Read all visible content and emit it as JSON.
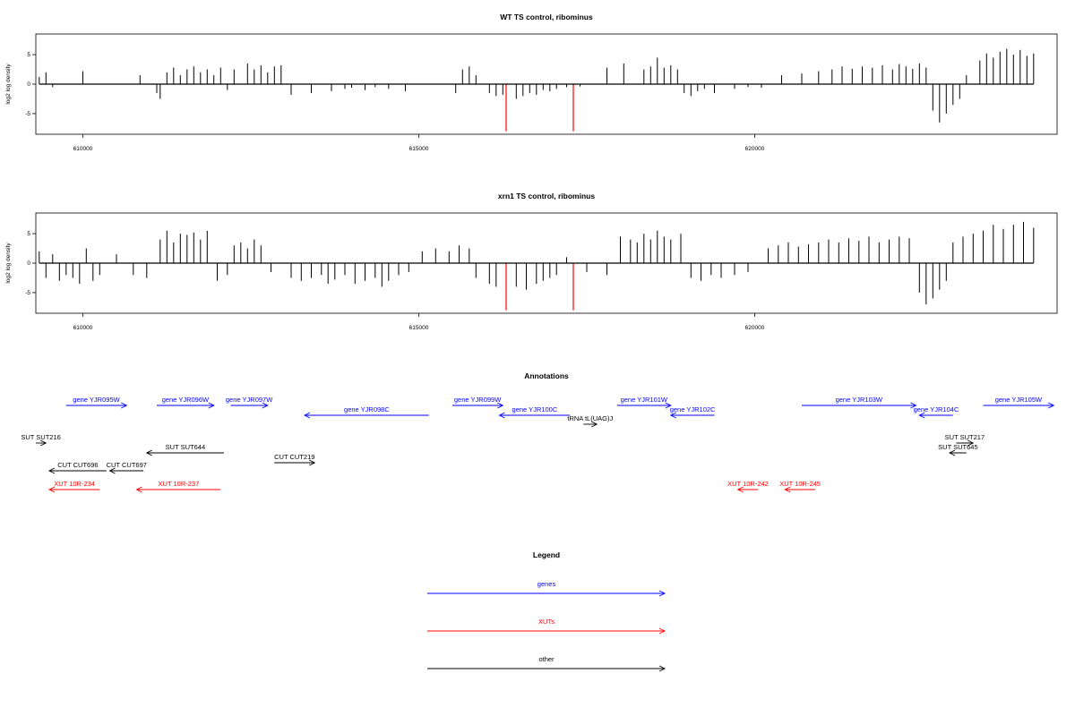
{
  "chart_data": [
    {
      "type": "bar",
      "title": "WT TS control, ribominus",
      "xlabel": "",
      "ylabel": "log2 log density",
      "xlim": [
        609300,
        624500
      ],
      "ylim": [
        -8.5,
        8.5
      ],
      "xticks": [
        610000,
        615000,
        620000
      ],
      "yticks": [
        -5,
        0,
        5
      ],
      "series": [
        {
          "color": "#000000",
          "x": [
            609350,
            609450,
            609550,
            610000,
            610850,
            611100,
            611150,
            611250,
            611350,
            611450,
            611550,
            611650,
            611750,
            611850,
            611950,
            612050,
            612150,
            612250,
            612450,
            612550,
            612650,
            612750,
            612850,
            612950,
            613100,
            613400,
            613700,
            613900,
            614000,
            614200,
            614350,
            614550,
            614800,
            615550,
            615650,
            615750,
            615850,
            616050,
            616150,
            616250,
            616450,
            616550,
            616650,
            616750,
            616850,
            616950,
            617050,
            617200,
            617400,
            617800,
            618050,
            618350,
            618450,
            618550,
            618650,
            618750,
            618850,
            618950,
            619050,
            619150,
            619250,
            619400,
            619700,
            619900,
            620100,
            620400,
            620700,
            620950,
            621150,
            621300,
            621450,
            621600,
            621750,
            621900,
            622050,
            622150,
            622250,
            622350,
            622450,
            622550,
            622650,
            622750,
            622850,
            622950,
            623050,
            623150,
            623350,
            623450,
            623550,
            623650,
            623750,
            623850,
            623950,
            624050,
            624150
          ],
          "values": [
            1.2,
            2.0,
            -0.5,
            2.2,
            1.5,
            -1.5,
            -2.5,
            2.0,
            2.8,
            1.5,
            2.5,
            3.0,
            2.0,
            2.5,
            1.5,
            2.8,
            -1.0,
            2.5,
            3.5,
            2.5,
            3.2,
            2.0,
            3.0,
            3.2,
            -1.8,
            -1.5,
            -1.2,
            -0.8,
            -0.6,
            -1.0,
            -0.5,
            -0.8,
            -1.2,
            -1.5,
            2.5,
            3.0,
            1.5,
            -1.5,
            -2.0,
            -1.8,
            -2.5,
            -2.0,
            -1.5,
            -1.8,
            -1.0,
            -1.2,
            -0.8,
            -0.5,
            -0.4,
            2.8,
            3.5,
            2.5,
            3.0,
            4.5,
            2.8,
            3.2,
            2.5,
            -1.5,
            -2.0,
            -1.2,
            -0.8,
            -1.5,
            -0.8,
            -0.5,
            -0.6,
            1.5,
            1.8,
            2.2,
            2.5,
            3.0,
            2.6,
            3.0,
            2.8,
            3.2,
            2.5,
            3.4,
            3.0,
            2.6,
            3.5,
            2.8,
            -4.5,
            -6.5,
            -5.0,
            -3.5,
            -2.5,
            1.5,
            4.0,
            5.2,
            4.5,
            5.5,
            6.0,
            5.0,
            5.8,
            4.8,
            5.2
          ]
        },
        {
          "color": "#ff0000",
          "x": [
            616300,
            617300
          ],
          "values": [
            -8,
            -8
          ]
        }
      ]
    },
    {
      "type": "bar",
      "title": "xrn1 TS control, ribominus",
      "xlabel": "",
      "ylabel": "log2 log density",
      "xlim": [
        609300,
        624500
      ],
      "ylim": [
        -8.5,
        8.5
      ],
      "xticks": [
        610000,
        615000,
        620000
      ],
      "yticks": [
        -5,
        0,
        5
      ],
      "series": [
        {
          "color": "#000000",
          "x": [
            609350,
            609450,
            609550,
            609650,
            609750,
            609850,
            609950,
            610050,
            610150,
            610250,
            610500,
            610750,
            610950,
            611150,
            611250,
            611350,
            611450,
            611550,
            611650,
            611750,
            611850,
            612000,
            612150,
            612250,
            612350,
            612450,
            612550,
            612650,
            612800,
            613100,
            613250,
            613400,
            613550,
            613650,
            613750,
            613900,
            614050,
            614200,
            614350,
            614450,
            614550,
            614700,
            614850,
            615050,
            615250,
            615450,
            615600,
            615750,
            615850,
            616050,
            616150,
            616300,
            616450,
            616600,
            616750,
            616850,
            616950,
            617050,
            617200,
            617500,
            617800,
            618000,
            618150,
            618250,
            618350,
            618450,
            618550,
            618650,
            618750,
            618900,
            619050,
            619200,
            619350,
            619500,
            619700,
            619900,
            620200,
            620350,
            620500,
            620650,
            620800,
            620950,
            621100,
            621250,
            621400,
            621550,
            621700,
            621850,
            622000,
            622150,
            622300,
            622450,
            622550,
            622650,
            622750,
            622850,
            622950,
            623100,
            623250,
            623400,
            623550,
            623700,
            623850,
            624000,
            624150
          ],
          "values": [
            2.0,
            -2.5,
            1.5,
            -3.0,
            -2.0,
            -2.5,
            -3.5,
            2.5,
            -3.0,
            -2.0,
            1.5,
            -2.0,
            -2.5,
            4.0,
            5.5,
            3.5,
            5.0,
            4.8,
            5.2,
            4.0,
            5.5,
            -3.0,
            -2.0,
            3.0,
            3.5,
            2.5,
            4.0,
            3.0,
            -1.5,
            -2.5,
            -3.0,
            -2.5,
            -2.0,
            -3.5,
            -2.8,
            -2.0,
            -3.5,
            -3.0,
            -2.5,
            -4.0,
            -3.0,
            -2.0,
            -1.5,
            2.0,
            2.5,
            2.0,
            3.0,
            2.5,
            -2.5,
            -3.5,
            -4.0,
            -5.0,
            -4.0,
            -4.5,
            -3.5,
            -3.0,
            -2.5,
            -2.0,
            1.0,
            -1.5,
            -2.0,
            4.5,
            4.0,
            3.5,
            5.0,
            4.0,
            5.5,
            4.5,
            4.0,
            5.0,
            -2.5,
            -3.0,
            -2.0,
            -2.5,
            -2.0,
            -1.5,
            2.5,
            3.0,
            3.5,
            2.8,
            3.2,
            3.5,
            4.0,
            3.5,
            4.2,
            3.8,
            4.5,
            3.5,
            4.0,
            4.5,
            4.2,
            -5.0,
            -7.0,
            -6.0,
            -4.5,
            -3.0,
            3.5,
            4.5,
            5.0,
            5.5,
            6.5,
            5.8,
            6.5,
            7.0,
            6.0
          ]
        },
        {
          "color": "#ff0000",
          "x": [
            616300,
            617300
          ],
          "values": [
            -8,
            -8
          ]
        }
      ]
    }
  ],
  "annotations": {
    "title": "Annotations",
    "xlim": [
      609300,
      624500
    ],
    "items": [
      {
        "label": "gene YJR095W",
        "x1": 609750,
        "x2": 610650,
        "dir": "right",
        "row": 0,
        "color": "#0000ff"
      },
      {
        "label": "gene YJR096W",
        "x1": 611100,
        "x2": 611950,
        "dir": "right",
        "row": 0,
        "color": "#0000ff"
      },
      {
        "label": "gene YJR097W",
        "x1": 612200,
        "x2": 612750,
        "dir": "right",
        "row": 0,
        "color": "#0000ff"
      },
      {
        "label": "gene YJR098C",
        "x1": 613300,
        "x2": 615150,
        "dir": "left",
        "row": 1,
        "color": "#0000ff"
      },
      {
        "label": "gene YJR099W",
        "x1": 615500,
        "x2": 616250,
        "dir": "right",
        "row": 0,
        "color": "#0000ff"
      },
      {
        "label": "gene YJR100C",
        "x1": 616200,
        "x2": 617250,
        "dir": "left",
        "row": 1,
        "color": "#0000ff"
      },
      {
        "label": "tRNA tL(UAG)J",
        "x1": 617450,
        "x2": 617650,
        "dir": "right",
        "row": 2,
        "color": "#000000"
      },
      {
        "label": "gene YJR101W",
        "x1": 617950,
        "x2": 618750,
        "dir": "right",
        "row": 0,
        "color": "#0000ff"
      },
      {
        "label": "gene YJR102C",
        "x1": 618750,
        "x2": 619400,
        "dir": "left",
        "row": 1,
        "color": "#0000ff"
      },
      {
        "label": "gene YJR103W",
        "x1": 620700,
        "x2": 622400,
        "dir": "right",
        "row": 0,
        "color": "#0000ff"
      },
      {
        "label": "gene YJR104C",
        "x1": 622450,
        "x2": 622950,
        "dir": "left",
        "row": 1,
        "color": "#0000ff"
      },
      {
        "label": "gene YJR105W",
        "x1": 623400,
        "x2": 624450,
        "dir": "right",
        "row": 0,
        "color": "#0000ff"
      },
      {
        "label": "SUT SUT216",
        "x1": 609300,
        "x2": 609450,
        "dir": "right",
        "row": 3,
        "color": "#000000"
      },
      {
        "label": "SUT SUT644",
        "x1": 610950,
        "x2": 612100,
        "dir": "left",
        "row": 4,
        "color": "#000000"
      },
      {
        "label": "CUT CUT219",
        "x1": 612850,
        "x2": 613450,
        "dir": "right",
        "row": 5,
        "color": "#000000"
      },
      {
        "label": "SUT SUT217",
        "x1": 623000,
        "x2": 623250,
        "dir": "right",
        "row": 3,
        "color": "#000000"
      },
      {
        "label": "SUT SUT645",
        "x1": 622900,
        "x2": 623150,
        "dir": "left",
        "row": 4,
        "color": "#000000"
      },
      {
        "label": "CUT CUT696",
        "x1": 609500,
        "x2": 610350,
        "dir": "left",
        "row": 6,
        "color": "#000000"
      },
      {
        "label": "CUT CUT697",
        "x1": 610400,
        "x2": 610900,
        "dir": "left",
        "row": 6,
        "color": "#000000"
      },
      {
        "label": "XUT 10R-234",
        "x1": 609500,
        "x2": 610250,
        "dir": "left",
        "row": 7,
        "color": "#ff0000"
      },
      {
        "label": "XUT 10R-237",
        "x1": 610800,
        "x2": 612050,
        "dir": "left",
        "row": 7,
        "color": "#ff0000"
      },
      {
        "label": "XUT 10R-242",
        "x1": 619750,
        "x2": 620050,
        "dir": "left",
        "row": 7,
        "color": "#ff0000"
      },
      {
        "label": "XUT 10R-245",
        "x1": 620450,
        "x2": 620900,
        "dir": "left",
        "row": 7,
        "color": "#ff0000"
      }
    ]
  },
  "legend": {
    "title": "Legend",
    "items": [
      {
        "label": "genes",
        "color": "#0000ff"
      },
      {
        "label": "XUTs",
        "color": "#ff0000"
      },
      {
        "label": "other",
        "color": "#000000"
      }
    ]
  }
}
